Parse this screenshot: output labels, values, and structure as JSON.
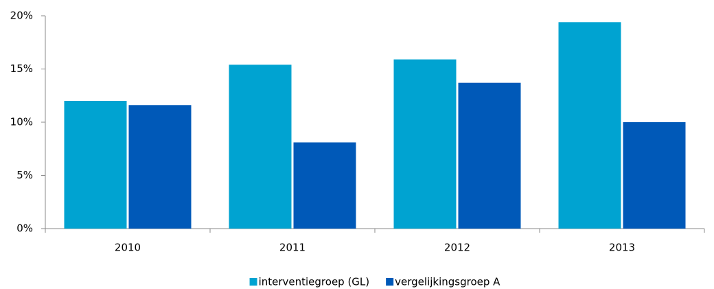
{
  "chart_data": {
    "type": "bar",
    "categories": [
      "2010",
      "2011",
      "2012",
      "2013"
    ],
    "series": [
      {
        "name": "interventiegroep (GL)",
        "color": "#00a3d1",
        "values": [
          12.0,
          15.4,
          15.9,
          19.4
        ]
      },
      {
        "name": "vergelijkingsgroep A",
        "color": "#0059b8",
        "values": [
          11.6,
          8.1,
          13.7,
          10.0
        ]
      }
    ],
    "ylim": [
      0,
      20
    ],
    "yticks": [
      {
        "value": 0,
        "label": "0%"
      },
      {
        "value": 5,
        "label": "5%"
      },
      {
        "value": 10,
        "label": "10%"
      },
      {
        "value": 15,
        "label": "15%"
      },
      {
        "value": 20,
        "label": "20%"
      }
    ],
    "grid": false,
    "legend": "bottom"
  }
}
